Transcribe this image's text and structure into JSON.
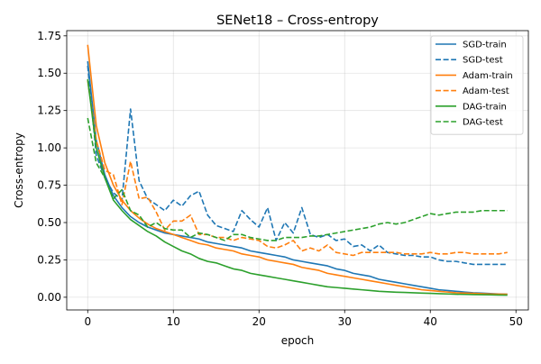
{
  "chart_data": {
    "type": "line",
    "title": "SENet18 – Cross-entropy",
    "xlabel": "epoch",
    "ylabel": "Cross-entropy",
    "xlim": [
      -2.45,
      51.45
    ],
    "ylim": [
      -0.085,
      1.785
    ],
    "xticks": [
      0,
      10,
      20,
      30,
      40,
      50
    ],
    "yticks": [
      0.0,
      0.25,
      0.5,
      0.75,
      1.0,
      1.25,
      1.5,
      1.75
    ],
    "ytick_labels": [
      "0.00",
      "0.25",
      "0.50",
      "0.75",
      "1.00",
      "1.25",
      "1.50",
      "1.75"
    ],
    "grid": true,
    "legend_position": "top-right",
    "x": [
      0,
      1,
      2,
      3,
      4,
      5,
      6,
      7,
      8,
      9,
      10,
      11,
      12,
      13,
      14,
      15,
      16,
      17,
      18,
      19,
      20,
      21,
      22,
      23,
      24,
      25,
      26,
      27,
      28,
      29,
      30,
      31,
      32,
      33,
      34,
      35,
      36,
      37,
      38,
      39,
      40,
      41,
      42,
      43,
      44,
      45,
      46,
      47,
      48,
      49
    ],
    "series": [
      {
        "name": "SGD-train",
        "color": "#1f77b4",
        "dash": "solid",
        "values": [
          1.58,
          1.05,
          0.82,
          0.68,
          0.6,
          0.54,
          0.5,
          0.47,
          0.45,
          0.43,
          0.42,
          0.41,
          0.4,
          0.39,
          0.37,
          0.36,
          0.35,
          0.34,
          0.33,
          0.31,
          0.3,
          0.29,
          0.28,
          0.27,
          0.25,
          0.24,
          0.23,
          0.22,
          0.21,
          0.19,
          0.18,
          0.16,
          0.15,
          0.14,
          0.12,
          0.11,
          0.1,
          0.09,
          0.08,
          0.07,
          0.06,
          0.05,
          0.045,
          0.04,
          0.035,
          0.03,
          0.028,
          0.025,
          0.022,
          0.02
        ]
      },
      {
        "name": "SGD-test",
        "color": "#1f77b4",
        "dash": "dashed",
        "values": [
          1.55,
          0.95,
          0.8,
          0.7,
          0.65,
          1.26,
          0.78,
          0.66,
          0.62,
          0.58,
          0.65,
          0.61,
          0.68,
          0.71,
          0.55,
          0.48,
          0.46,
          0.44,
          0.58,
          0.52,
          0.47,
          0.6,
          0.38,
          0.5,
          0.43,
          0.6,
          0.42,
          0.4,
          0.42,
          0.38,
          0.39,
          0.34,
          0.35,
          0.31,
          0.35,
          0.3,
          0.29,
          0.28,
          0.28,
          0.27,
          0.27,
          0.25,
          0.24,
          0.24,
          0.23,
          0.22,
          0.22,
          0.22,
          0.22,
          0.22
        ]
      },
      {
        "name": "Adam-train",
        "color": "#ff7f0e",
        "dash": "solid",
        "values": [
          1.69,
          1.15,
          0.9,
          0.75,
          0.65,
          0.58,
          0.53,
          0.49,
          0.46,
          0.44,
          0.42,
          0.4,
          0.38,
          0.36,
          0.35,
          0.33,
          0.32,
          0.31,
          0.29,
          0.28,
          0.27,
          0.25,
          0.24,
          0.23,
          0.22,
          0.2,
          0.19,
          0.18,
          0.16,
          0.15,
          0.14,
          0.13,
          0.12,
          0.11,
          0.1,
          0.09,
          0.08,
          0.07,
          0.06,
          0.05,
          0.045,
          0.04,
          0.035,
          0.03,
          0.028,
          0.026,
          0.024,
          0.022,
          0.021,
          0.02
        ]
      },
      {
        "name": "Adam-test",
        "color": "#ff7f0e",
        "dash": "dashed",
        "values": [
          1.45,
          1.05,
          0.85,
          0.82,
          0.62,
          0.91,
          0.66,
          0.67,
          0.57,
          0.45,
          0.51,
          0.51,
          0.55,
          0.42,
          0.42,
          0.4,
          0.4,
          0.38,
          0.4,
          0.39,
          0.38,
          0.34,
          0.33,
          0.35,
          0.38,
          0.31,
          0.33,
          0.31,
          0.35,
          0.3,
          0.29,
          0.28,
          0.3,
          0.3,
          0.3,
          0.3,
          0.3,
          0.29,
          0.29,
          0.29,
          0.3,
          0.29,
          0.29,
          0.3,
          0.3,
          0.29,
          0.29,
          0.29,
          0.29,
          0.3
        ]
      },
      {
        "name": "DAG-train",
        "color": "#2ca02c",
        "dash": "solid",
        "values": [
          1.46,
          1.0,
          0.8,
          0.65,
          0.58,
          0.52,
          0.48,
          0.44,
          0.41,
          0.37,
          0.34,
          0.31,
          0.29,
          0.26,
          0.24,
          0.23,
          0.21,
          0.19,
          0.18,
          0.16,
          0.15,
          0.14,
          0.13,
          0.12,
          0.11,
          0.1,
          0.09,
          0.08,
          0.07,
          0.065,
          0.06,
          0.055,
          0.05,
          0.045,
          0.04,
          0.037,
          0.034,
          0.032,
          0.03,
          0.028,
          0.026,
          0.024,
          0.022,
          0.02,
          0.019,
          0.018,
          0.017,
          0.016,
          0.015,
          0.014
        ]
      },
      {
        "name": "DAG-test",
        "color": "#2ca02c",
        "dash": "dashed",
        "values": [
          1.2,
          0.9,
          0.8,
          0.66,
          0.72,
          0.58,
          0.55,
          0.47,
          0.5,
          0.46,
          0.45,
          0.45,
          0.4,
          0.43,
          0.42,
          0.4,
          0.38,
          0.42,
          0.42,
          0.4,
          0.39,
          0.38,
          0.38,
          0.4,
          0.4,
          0.4,
          0.41,
          0.41,
          0.42,
          0.43,
          0.44,
          0.45,
          0.46,
          0.47,
          0.49,
          0.5,
          0.49,
          0.5,
          0.52,
          0.54,
          0.56,
          0.55,
          0.56,
          0.57,
          0.57,
          0.57,
          0.58,
          0.58,
          0.58,
          0.58
        ]
      }
    ]
  }
}
